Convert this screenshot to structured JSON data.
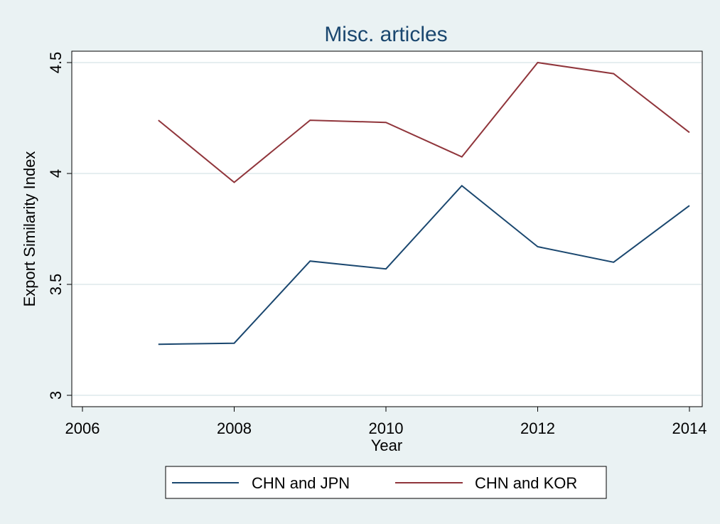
{
  "chart_data": {
    "type": "line",
    "title": "Misc. articles",
    "xlabel": "Year",
    "ylabel": "Export Similarity Index",
    "xlim": [
      2006,
      2014
    ],
    "ylim": [
      3,
      4.5
    ],
    "xticks": [
      2006,
      2008,
      2010,
      2012,
      2014
    ],
    "yticks": [
      3,
      3.5,
      4,
      4.5
    ],
    "x": [
      2007,
      2008,
      2009,
      2010,
      2011,
      2012,
      2013,
      2014
    ],
    "series": [
      {
        "name": "CHN and JPN",
        "color": "#1a476f",
        "values": [
          3.23,
          3.235,
          3.605,
          3.57,
          3.945,
          3.67,
          3.6,
          3.855
        ]
      },
      {
        "name": "CHN and KOR",
        "color": "#90353b",
        "values": [
          4.24,
          3.96,
          4.24,
          4.23,
          4.075,
          4.5,
          4.45,
          4.185
        ]
      }
    ],
    "grid": true,
    "legend_position": "bottom"
  }
}
